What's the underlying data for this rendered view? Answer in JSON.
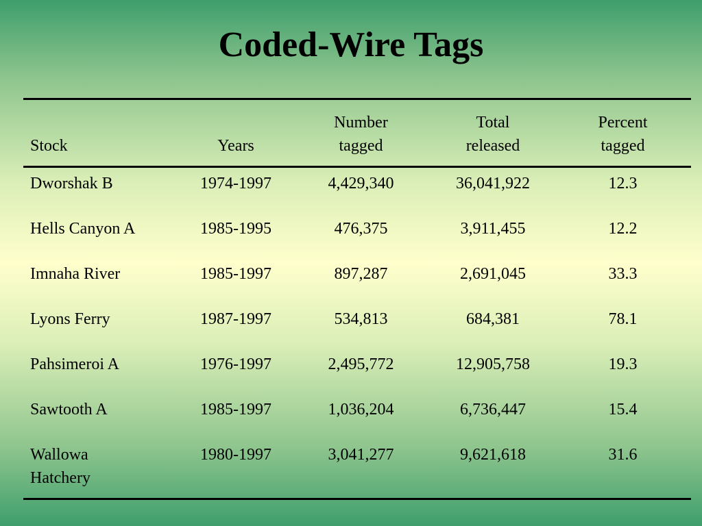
{
  "title": "Coded-Wire Tags",
  "table": {
    "headers": {
      "stock": "Stock",
      "years": "Years",
      "number_tagged_1": "Number",
      "number_tagged_2": "tagged",
      "total_released_1": "Total",
      "total_released_2": "released",
      "percent_tagged_1": "Percent",
      "percent_tagged_2": "tagged"
    },
    "rows": [
      {
        "stock": "Dworshak B",
        "years": "1974-1997",
        "number_tagged": "4,429,340",
        "total_released": "36,041,922",
        "percent_tagged": "12.3"
      },
      {
        "stock": "Hells Canyon A",
        "years": "1985-1995",
        "number_tagged": "476,375",
        "total_released": "3,911,455",
        "percent_tagged": "12.2"
      },
      {
        "stock": "Imnaha River",
        "years": "1985-1997",
        "number_tagged": "897,287",
        "total_released": "2,691,045",
        "percent_tagged": "33.3"
      },
      {
        "stock": "Lyons Ferry",
        "years": "1987-1997",
        "number_tagged": "534,813",
        "total_released": "684,381",
        "percent_tagged": "78.1"
      },
      {
        "stock": "Pahsimeroi A",
        "years": "1976-1997",
        "number_tagged": "2,495,772",
        "total_released": "12,905,758",
        "percent_tagged": "19.3"
      },
      {
        "stock": "Sawtooth A",
        "years": "1985-1997",
        "number_tagged": "1,036,204",
        "total_released": "6,736,447",
        "percent_tagged": "15.4"
      },
      {
        "stock_1": "Wallowa",
        "stock_2": "Hatchery",
        "years": "1980-1997",
        "number_tagged": "3,041,277",
        "total_released": "9,621,618",
        "percent_tagged": "31.6"
      }
    ]
  }
}
